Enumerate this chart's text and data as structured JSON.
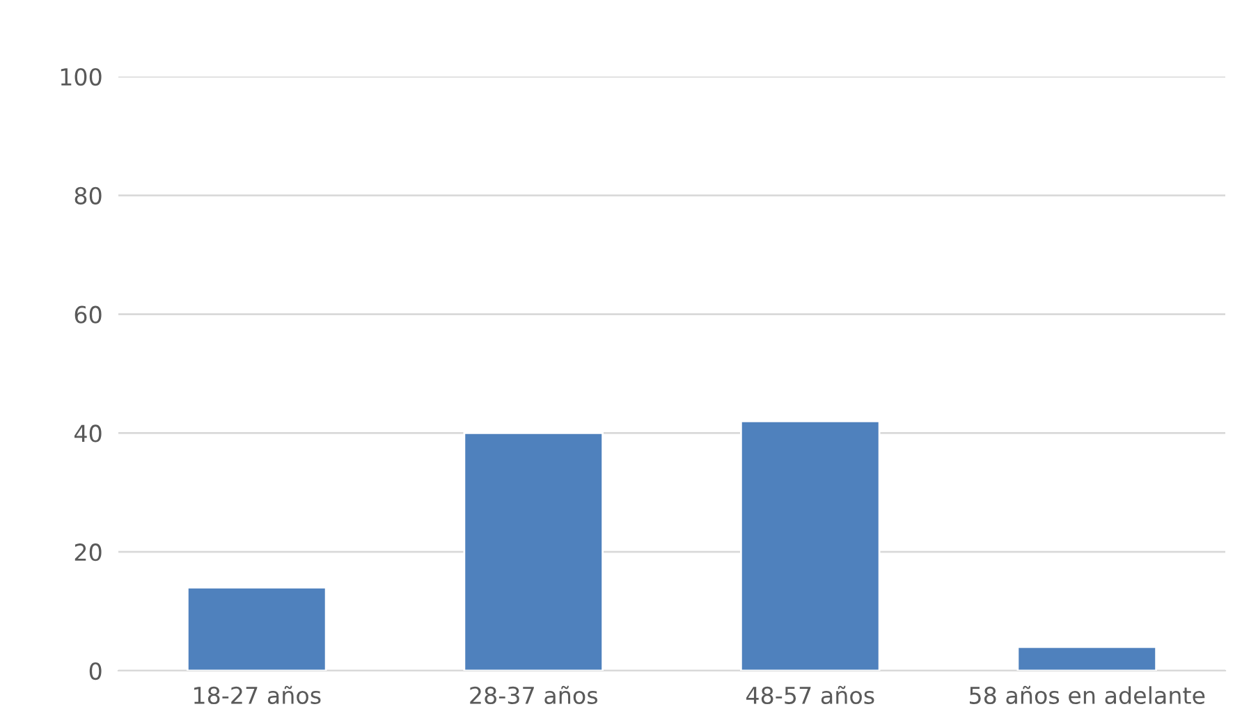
{
  "chart_data": {
    "type": "bar",
    "categories": [
      "18-27 años",
      "28-37 años",
      "48-57 años",
      "58 años en adelante"
    ],
    "values": [
      14,
      40,
      42,
      4
    ],
    "color": "#4f81bd",
    "ylim": [
      0,
      100
    ],
    "yticks": [
      0,
      20,
      40,
      60,
      80,
      100
    ],
    "grid": "y",
    "legend": false
  }
}
